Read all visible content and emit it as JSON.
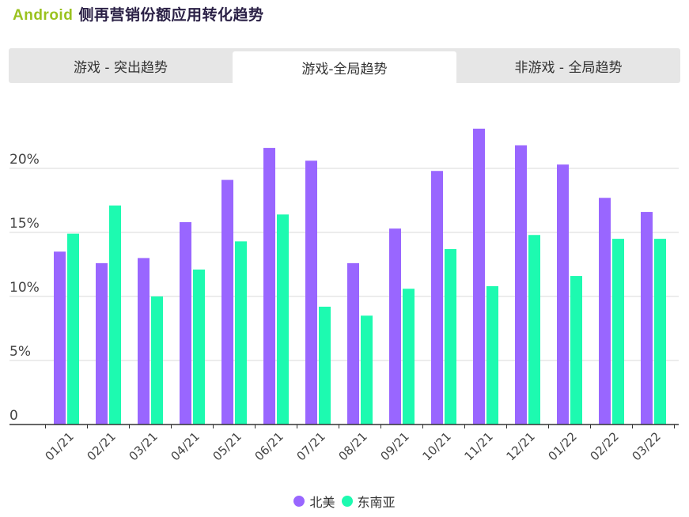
{
  "header": {
    "brand": "Android",
    "title": " 侧再营销份额应用转化趋势"
  },
  "tabs": [
    {
      "label": "游戏 - 突出趋势",
      "active": false
    },
    {
      "label": "游戏-全局趋势",
      "active": true
    },
    {
      "label": "非游戏 - 全局趋势",
      "active": false
    }
  ],
  "colors": {
    "north_america": "#9966ff",
    "southeast_asia": "#1dfab0"
  },
  "chart_data": {
    "type": "bar",
    "categories": [
      "01/21",
      "02/21",
      "03/21",
      "04/21",
      "05/21",
      "06/21",
      "07/21",
      "08/21",
      "09/21",
      "10/21",
      "11/21",
      "12/21",
      "01/22",
      "02/22",
      "03/22"
    ],
    "series": [
      {
        "name": "北美",
        "color": "#9966ff",
        "values": [
          13.5,
          12.6,
          13.0,
          15.8,
          19.1,
          21.6,
          20.6,
          12.6,
          15.3,
          19.8,
          23.1,
          21.8,
          20.3,
          17.7,
          16.6
        ]
      },
      {
        "name": "东南亚",
        "color": "#1dfab0",
        "values": [
          14.9,
          17.1,
          10.0,
          12.1,
          14.3,
          16.4,
          9.2,
          8.5,
          10.6,
          13.7,
          10.8,
          14.8,
          11.6,
          14.5,
          14.5
        ]
      }
    ],
    "yticks": [
      "0",
      "5%",
      "10%",
      "15%",
      "20%"
    ],
    "ytick_values": [
      0,
      5,
      10,
      15,
      20
    ],
    "ylim": [
      0,
      25
    ],
    "grid": true,
    "legend": "bottom-center"
  }
}
